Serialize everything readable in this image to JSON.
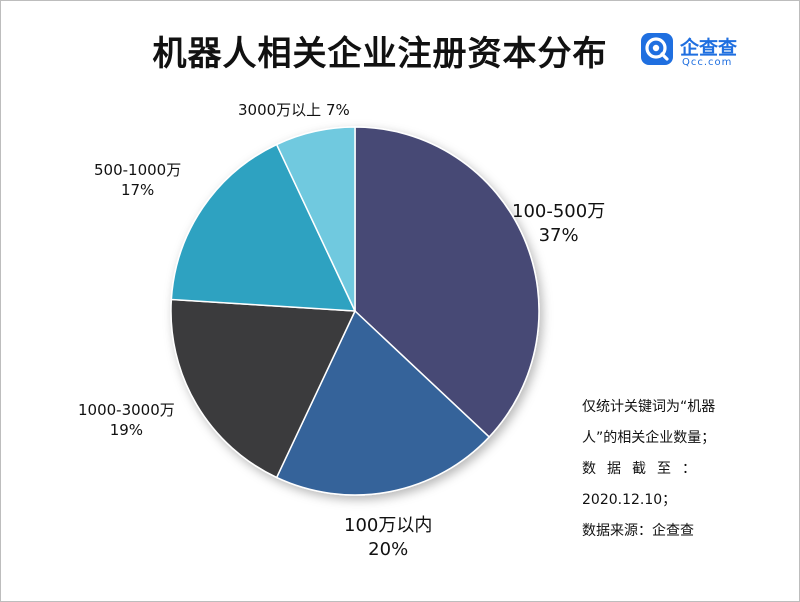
{
  "title": "机器人相关企业注册资本分布",
  "logo": {
    "icon": "qichacha-logo-icon",
    "name": "企查查",
    "domain": "Qcc.com",
    "color": "#1f6fe0"
  },
  "chart_data": {
    "type": "pie",
    "title": "机器人相关企业注册资本分布",
    "unit": "%",
    "slices": [
      {
        "label": "100-500万",
        "value": 37,
        "pct_label": "37%",
        "color": "#464a74"
      },
      {
        "label": "100万以内",
        "value": 20,
        "pct_label": "20%",
        "color": "#35639a"
      },
      {
        "label": "1000-3000万",
        "value": 19,
        "pct_label": "19%",
        "color": "#3a3a3c"
      },
      {
        "label": "500-1000万",
        "value": 17,
        "pct_label": "17%",
        "color": "#2ea2c1"
      },
      {
        "label": "3000万以上",
        "value": 7,
        "pct_label": "7%",
        "color": "#6fc9df"
      }
    ],
    "start": "12 o'clock",
    "direction": "clockwise",
    "legend": "none"
  },
  "note": {
    "line1": "仅统计关键词为“机器",
    "line2": "人”的相关企业数量；",
    "line3": "数据截至：",
    "line4": "2020.12.10；",
    "line5": "数据来源：企查查"
  }
}
